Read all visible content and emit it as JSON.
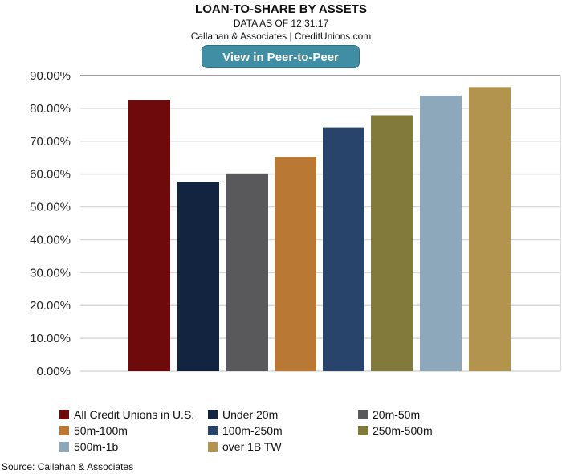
{
  "chart_data": {
    "type": "bar",
    "title": "LOAN-TO-SHARE BY ASSETS",
    "subtitle": "DATA AS OF 12.31.17",
    "credit": "Callahan & Associates | CreditUnions.com",
    "categories": [
      "All Credit Unions in U.S.",
      "Under 20m",
      "20m-50m",
      "50m-100m",
      "100m-250m",
      "250m-500m",
      "500m-1b",
      "over 1B TW"
    ],
    "values": [
      82.5,
      57.7,
      60.2,
      65.2,
      74.2,
      77.9,
      83.9,
      86.5
    ],
    "colors": [
      "#6e0a0c",
      "#12243f",
      "#59595b",
      "#b97834",
      "#29446a",
      "#827a3b",
      "#8da8bb",
      "#b3944f"
    ],
    "ylim": [
      0,
      90
    ],
    "yticks": [
      "0.00%",
      "10.00%",
      "20.00%",
      "30.00%",
      "40.00%",
      "50.00%",
      "60.00%",
      "70.00%",
      "80.00%",
      "90.00%"
    ],
    "grid": true,
    "legend_position": "bottom",
    "source": "Source: Callahan & Associates"
  },
  "button": {
    "label": "View in Peer-to-Peer"
  }
}
